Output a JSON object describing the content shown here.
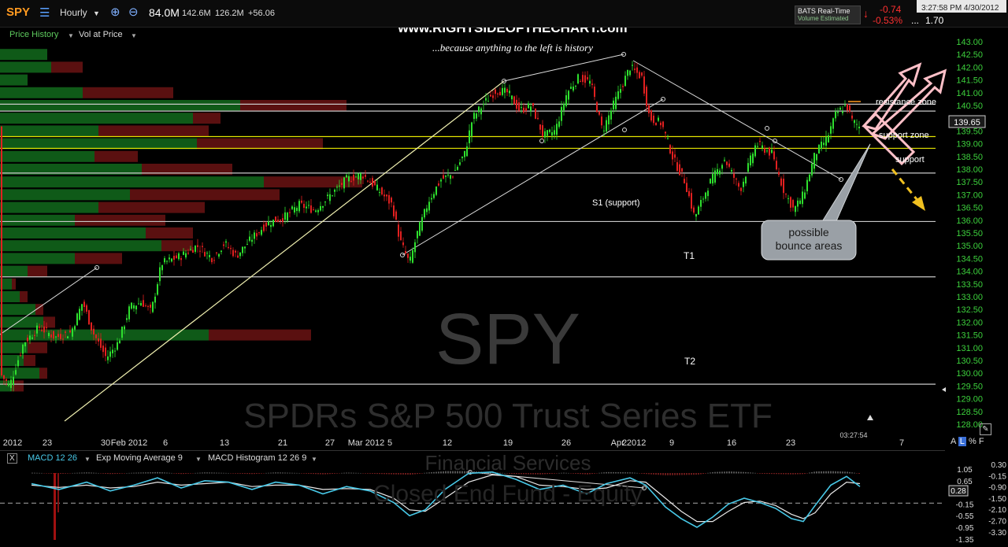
{
  "toolbar": {
    "symbol": "SPY",
    "interval": "Hourly",
    "volume": "84.0M",
    "stats": [
      "142.6M",
      "126.2M",
      "+56.06"
    ],
    "feed_label": "BATS Real-Time",
    "feed_sublabel": "Volume Estimated",
    "change": "-0.74",
    "change_pct": "-0.53%",
    "extra_value": "1.70",
    "datetime": "3:27:58 PM 4/30/2012"
  },
  "subbar": {
    "price_history": "Price History",
    "vol_at_price": "Vol at Price"
  },
  "watermarks": {
    "site": "www.RIGHTSIDEOFTHECHART.com",
    "tagline": "...because anything to the left is history",
    "symbol_big": "SPY",
    "fund_name": "SPDRs S&P 500 Trust Series ETF",
    "sector": "Financial Services",
    "category": "Closed End Fund - Equity"
  },
  "chart_data": [
    {
      "type": "candlestick",
      "symbol": "SPY",
      "interval": "Hourly",
      "ylim": [
        127.6,
        143.2
      ],
      "y_ticks": [
        "143.00",
        "142.50",
        "142.00",
        "141.50",
        "141.00",
        "140.50",
        "140.00",
        "139.50",
        "139.00",
        "138.50",
        "138.00",
        "137.50",
        "137.00",
        "136.50",
        "136.00",
        "135.50",
        "135.00",
        "134.50",
        "134.00",
        "133.50",
        "133.00",
        "132.50",
        "132.00",
        "131.50",
        "131.00",
        "130.50",
        "130.00",
        "129.50",
        "129.00",
        "128.50",
        "128.00"
      ],
      "last_price": "139.65",
      "last_price_value": 139.65,
      "x_tick_labels": [
        "2012",
        "23",
        "30",
        "Feb 2012",
        "6",
        "13",
        "21",
        "27",
        "Mar 2012",
        "5",
        "12",
        "19",
        "26",
        "2",
        "Apr 2012",
        "9",
        "16",
        "23",
        "7"
      ],
      "time_readout": "03:27:54",
      "close_path": [
        [
          0,
          130.0
        ],
        [
          12,
          129.5
        ],
        [
          30,
          131.2
        ],
        [
          50,
          131.8
        ],
        [
          70,
          131.4
        ],
        [
          90,
          131.6
        ],
        [
          105,
          132.8
        ],
        [
          118,
          131.6
        ],
        [
          135,
          130.6
        ],
        [
          150,
          131.2
        ],
        [
          165,
          132.6
        ],
        [
          180,
          132.8
        ],
        [
          192,
          132.4
        ],
        [
          205,
          134.3
        ],
        [
          230,
          134.6
        ],
        [
          250,
          135.0
        ],
        [
          270,
          134.5
        ],
        [
          285,
          135.1
        ],
        [
          300,
          134.6
        ],
        [
          320,
          135.3
        ],
        [
          340,
          135.9
        ],
        [
          360,
          136.1
        ],
        [
          380,
          136.6
        ],
        [
          400,
          136.4
        ],
        [
          420,
          137.0
        ],
        [
          440,
          137.6
        ],
        [
          460,
          137.8
        ],
        [
          480,
          137.2
        ],
        [
          498,
          136.6
        ],
        [
          508,
          135.2
        ],
        [
          520,
          134.3
        ],
        [
          530,
          135.5
        ],
        [
          545,
          136.8
        ],
        [
          560,
          137.6
        ],
        [
          575,
          137.8
        ],
        [
          590,
          138.6
        ],
        [
          600,
          140.0
        ],
        [
          615,
          140.6
        ],
        [
          630,
          141.1
        ],
        [
          645,
          141.0
        ],
        [
          660,
          140.3
        ],
        [
          675,
          140.5
        ],
        [
          690,
          139.3
        ],
        [
          705,
          139.5
        ],
        [
          720,
          141.0
        ],
        [
          735,
          141.6
        ],
        [
          750,
          141.4
        ],
        [
          765,
          139.5
        ],
        [
          780,
          140.6
        ],
        [
          800,
          142.0
        ],
        [
          815,
          141.6
        ],
        [
          825,
          140.0
        ],
        [
          840,
          139.8
        ],
        [
          855,
          138.4
        ],
        [
          870,
          137.5
        ],
        [
          882,
          136.1
        ],
        [
          900,
          137.4
        ],
        [
          920,
          138.4
        ],
        [
          940,
          137.2
        ],
        [
          960,
          139.0
        ],
        [
          980,
          138.6
        ],
        [
          995,
          137.2
        ],
        [
          1008,
          136.4
        ],
        [
          1020,
          137.0
        ],
        [
          1035,
          138.6
        ],
        [
          1050,
          139.2
        ],
        [
          1062,
          140.2
        ],
        [
          1075,
          140.5
        ],
        [
          1082,
          139.9
        ],
        [
          1092,
          139.65
        ]
      ],
      "volume_at_price": [
        {
          "price": 142.5,
          "up": 60,
          "down": 0
        },
        {
          "price": 142.0,
          "up": 65,
          "down": 40
        },
        {
          "price": 141.5,
          "up": 35,
          "down": 0
        },
        {
          "price": 141.0,
          "up": 105,
          "down": 115
        },
        {
          "price": 140.5,
          "up": 305,
          "down": 135
        },
        {
          "price": 140.0,
          "up": 245,
          "down": 35
        },
        {
          "price": 139.5,
          "up": 125,
          "down": 140
        },
        {
          "price": 139.0,
          "up": 250,
          "down": 160
        },
        {
          "price": 138.5,
          "up": 120,
          "down": 55
        },
        {
          "price": 138.0,
          "up": 180,
          "down": 115
        },
        {
          "price": 137.5,
          "up": 335,
          "down": 125
        },
        {
          "price": 137.0,
          "up": 165,
          "down": 190
        },
        {
          "price": 136.5,
          "up": 125,
          "down": 135
        },
        {
          "price": 136.0,
          "up": 95,
          "down": 115
        },
        {
          "price": 135.5,
          "up": 185,
          "down": 60
        },
        {
          "price": 135.0,
          "up": 205,
          "down": 40
        },
        {
          "price": 134.5,
          "up": 95,
          "down": 60
        },
        {
          "price": 134.0,
          "up": 35,
          "down": 25
        },
        {
          "price": 133.5,
          "up": 15,
          "down": 5
        },
        {
          "price": 133.0,
          "up": 25,
          "down": 10
        },
        {
          "price": 132.5,
          "up": 45,
          "down": 10
        },
        {
          "price": 132.0,
          "up": 55,
          "down": 15
        },
        {
          "price": 131.5,
          "up": 265,
          "down": 130
        },
        {
          "price": 131.0,
          "up": 35,
          "down": 25
        },
        {
          "price": 130.5,
          "up": 30,
          "down": 15
        },
        {
          "price": 130.0,
          "up": 50,
          "down": 10
        },
        {
          "price": 129.5,
          "up": 15,
          "down": 15
        }
      ],
      "horizontal_levels": [
        {
          "price": 140.55,
          "color": "#c8c8c8"
        },
        {
          "price": 140.28,
          "color": "#c8c8c8"
        },
        {
          "price": 139.28,
          "color": "#e4e400"
        },
        {
          "price": 138.82,
          "color": "#e4e400"
        },
        {
          "price": 137.85,
          "color": "#c8c8c8"
        },
        {
          "price": 135.95,
          "color": "#c8c8c8"
        },
        {
          "price": 133.78,
          "color": "#c8c8c8"
        },
        {
          "price": 129.57,
          "color": "#c8c8c8"
        }
      ],
      "level_labels": [
        "resistance zone",
        "support zone",
        "support",
        "S1 (support)",
        "T1",
        "T2"
      ],
      "callout": "possible\nbounce areas"
    },
    {
      "type": "line",
      "name": "MACD 12 26",
      "signal_name": "Exp Moving Average 9",
      "histogram_name": "MACD Histogram 12 26 9",
      "ylim": [
        -1.4,
        1.2
      ],
      "y_ticks": [
        "1.05",
        "0.65",
        "0.28",
        "-0.15",
        "-0.55",
        "-0.95",
        "-1.35"
      ],
      "y_ticks_right": [
        "0.30",
        "-0.15",
        "-0.90",
        "-1.50",
        "-2.10",
        "-2.70",
        "-3.30"
      ],
      "last_value": "0.28",
      "macd": [
        [
          40,
          0.55
        ],
        [
          75,
          0.35
        ],
        [
          110,
          0.6
        ],
        [
          140,
          0.3
        ],
        [
          170,
          0.5
        ],
        [
          200,
          0.75
        ],
        [
          230,
          0.4
        ],
        [
          260,
          0.65
        ],
        [
          290,
          0.6
        ],
        [
          320,
          0.35
        ],
        [
          350,
          0.6
        ],
        [
          380,
          0.5
        ],
        [
          410,
          0.2
        ],
        [
          440,
          0.45
        ],
        [
          470,
          0.3
        ],
        [
          500,
          -0.1
        ],
        [
          520,
          -0.55
        ],
        [
          540,
          -0.35
        ],
        [
          565,
          0.35
        ],
        [
          595,
          0.9
        ],
        [
          625,
          0.95
        ],
        [
          655,
          0.7
        ],
        [
          685,
          0.35
        ],
        [
          715,
          0.5
        ],
        [
          745,
          0.2
        ],
        [
          770,
          0.55
        ],
        [
          800,
          0.75
        ],
        [
          820,
          0.5
        ],
        [
          845,
          -0.25
        ],
        [
          865,
          -0.65
        ],
        [
          885,
          -0.95
        ],
        [
          905,
          -0.6
        ],
        [
          925,
          -0.15
        ],
        [
          945,
          0.05
        ],
        [
          965,
          -0.1
        ],
        [
          985,
          -0.3
        ],
        [
          1005,
          -0.65
        ],
        [
          1020,
          -0.75
        ],
        [
          1035,
          -0.2
        ],
        [
          1055,
          0.5
        ],
        [
          1075,
          0.8
        ],
        [
          1092,
          0.45
        ]
      ],
      "signal": [
        [
          40,
          0.5
        ],
        [
          75,
          0.42
        ],
        [
          110,
          0.5
        ],
        [
          140,
          0.4
        ],
        [
          170,
          0.45
        ],
        [
          200,
          0.6
        ],
        [
          230,
          0.5
        ],
        [
          260,
          0.55
        ],
        [
          290,
          0.6
        ],
        [
          320,
          0.45
        ],
        [
          350,
          0.5
        ],
        [
          380,
          0.5
        ],
        [
          410,
          0.35
        ],
        [
          440,
          0.38
        ],
        [
          470,
          0.35
        ],
        [
          500,
          0.05
        ],
        [
          520,
          -0.35
        ],
        [
          540,
          -0.4
        ],
        [
          565,
          0.05
        ],
        [
          595,
          0.6
        ],
        [
          625,
          0.85
        ],
        [
          655,
          0.8
        ],
        [
          685,
          0.5
        ],
        [
          715,
          0.45
        ],
        [
          745,
          0.35
        ],
        [
          770,
          0.4
        ],
        [
          800,
          0.65
        ],
        [
          820,
          0.6
        ],
        [
          845,
          0.05
        ],
        [
          865,
          -0.4
        ],
        [
          885,
          -0.75
        ],
        [
          905,
          -0.75
        ],
        [
          925,
          -0.4
        ],
        [
          945,
          -0.1
        ],
        [
          965,
          -0.05
        ],
        [
          985,
          -0.2
        ],
        [
          1005,
          -0.5
        ],
        [
          1020,
          -0.65
        ],
        [
          1035,
          -0.45
        ],
        [
          1055,
          0.2
        ],
        [
          1075,
          0.6
        ],
        [
          1092,
          0.55
        ]
      ],
      "zero_line": -0.12
    }
  ]
}
